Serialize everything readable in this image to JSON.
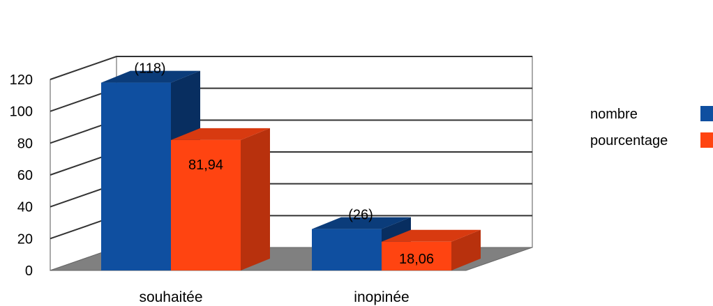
{
  "chart_data": {
    "type": "bar",
    "style": "3d-clustered-column",
    "categories": [
      "souhaitée",
      "inopinée"
    ],
    "series": [
      {
        "name": "nombre",
        "values": [
          118,
          26
        ],
        "data_labels": [
          "(118)",
          "(26)"
        ],
        "color": "#0F4FA0",
        "color_side": "#082E60",
        "color_top": "#0B3C7A"
      },
      {
        "name": "pourcentage",
        "values": [
          81.94,
          18.06
        ],
        "data_labels": [
          "81,94",
          "18,06"
        ],
        "color": "#FF4411",
        "color_side": "#B8310D",
        "color_top": "#D83A10"
      }
    ],
    "ylim": [
      0,
      120
    ],
    "yticks": [
      "0",
      "20",
      "40",
      "60",
      "80",
      "100",
      "120"
    ],
    "grid": true,
    "floor_color": "#808080",
    "legend_position": "right"
  }
}
